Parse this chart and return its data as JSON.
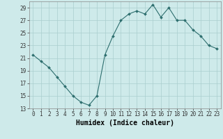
{
  "x": [
    0,
    1,
    2,
    3,
    4,
    5,
    6,
    7,
    8,
    9,
    10,
    11,
    12,
    13,
    14,
    15,
    16,
    17,
    18,
    19,
    20,
    21,
    22,
    23
  ],
  "y": [
    21.5,
    20.5,
    19.5,
    18.0,
    16.5,
    15.0,
    14.0,
    13.5,
    15.0,
    21.5,
    24.5,
    27.0,
    28.0,
    28.5,
    28.0,
    29.5,
    27.5,
    29.0,
    27.0,
    27.0,
    25.5,
    24.5,
    23.0,
    22.5
  ],
  "line_color": "#2d6e6e",
  "marker": "D",
  "marker_size": 2.0,
  "bg_color": "#ceeaea",
  "grid_color": "#aacece",
  "xlabel": "Humidex (Indice chaleur)",
  "ylim": [
    13,
    30
  ],
  "xlim": [
    -0.5,
    23.5
  ],
  "yticks": [
    13,
    15,
    17,
    19,
    21,
    23,
    25,
    27,
    29
  ],
  "xticks": [
    0,
    1,
    2,
    3,
    4,
    5,
    6,
    7,
    8,
    9,
    10,
    11,
    12,
    13,
    14,
    15,
    16,
    17,
    18,
    19,
    20,
    21,
    22,
    23
  ],
  "xtick_labels": [
    "0",
    "1",
    "2",
    "3",
    "4",
    "5",
    "6",
    "7",
    "8",
    "9",
    "10",
    "11",
    "12",
    "13",
    "14",
    "15",
    "16",
    "17",
    "18",
    "19",
    "20",
    "21",
    "22",
    "23"
  ],
  "tick_fontsize": 5.5,
  "xlabel_fontsize": 7.0,
  "linewidth": 0.8
}
